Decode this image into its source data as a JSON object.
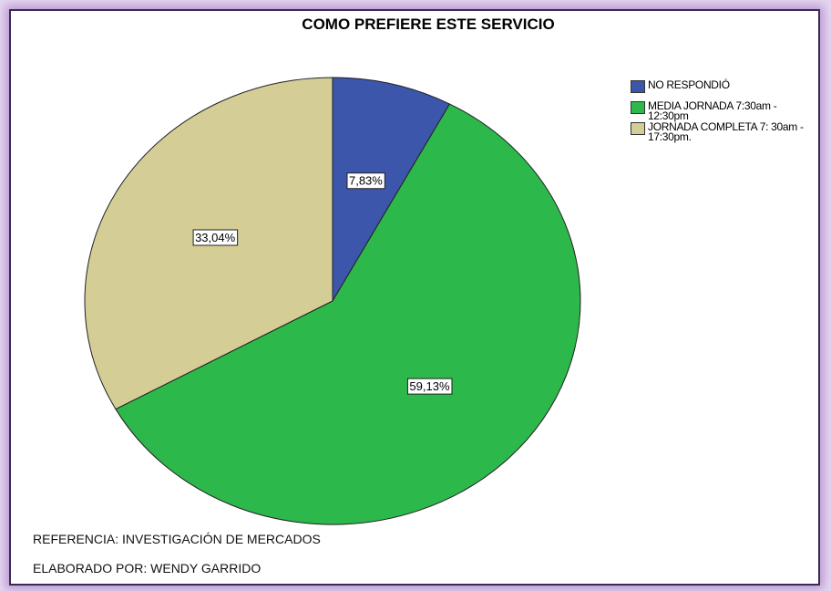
{
  "chart_data": {
    "type": "pie",
    "title": "COMO PREFIERE ESTE SERVICIO",
    "categories": [
      "NO RESPONDIÓ",
      "MEDIA JORNADA 7:30am - 12:30pm",
      "JORNADA COMPLETA 7: 30am - 17:30pm."
    ],
    "values": [
      7.83,
      59.13,
      33.04
    ],
    "value_labels": [
      "7,83%",
      "59,13%",
      "33,04%"
    ],
    "colors": [
      "#3b56aa",
      "#2db84b",
      "#d4cd96"
    ],
    "legend": "upper right",
    "annotations": [
      "REFERENCIA: INVESTIGACIÓN DE MERCADOS",
      "ELABORADO POR: WENDY GARRIDO"
    ]
  }
}
